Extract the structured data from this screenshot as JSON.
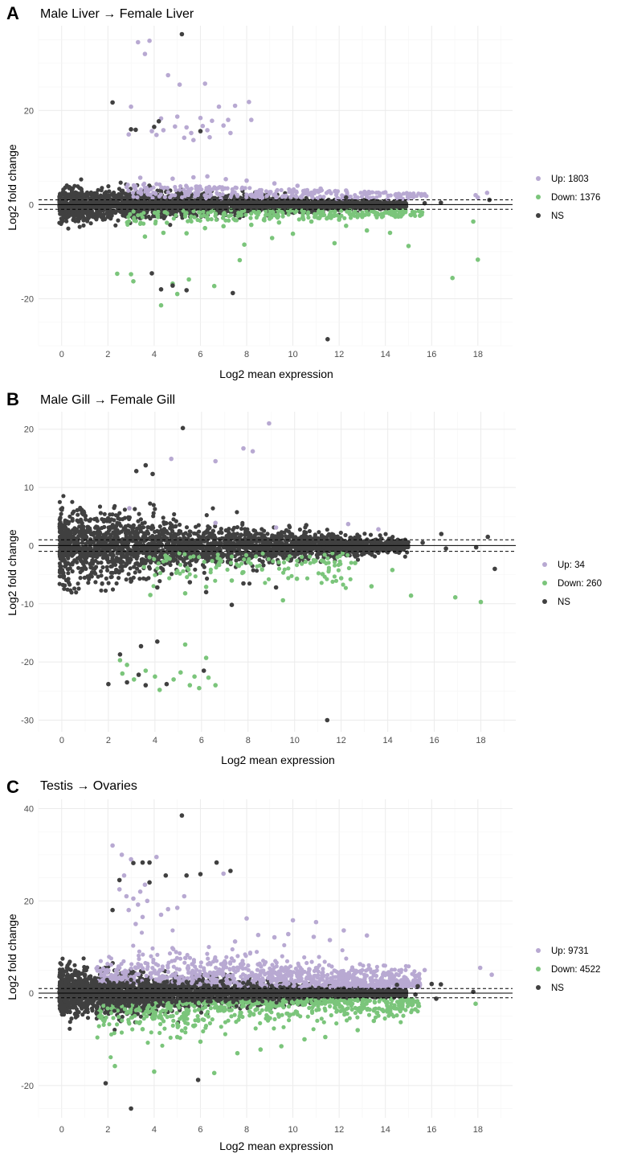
{
  "colors": {
    "up": "#b8a9d2",
    "down": "#7bc57b",
    "ns": "#404040",
    "grid_major": "#ebebeb",
    "grid_minor": "#f5f5f5",
    "axis_text": "#4d4d4d"
  },
  "chart_data": [
    {
      "type": "scatter",
      "panel_letter": "A",
      "title": "Male Liver → Female Liver",
      "xlabel": "Log2 mean expression",
      "ylabel": "Log2 fold change",
      "xlim": [
        -1,
        19.5
      ],
      "ylim": [
        -30,
        38
      ],
      "xticks": [
        0,
        2,
        4,
        6,
        8,
        10,
        12,
        14,
        16,
        18
      ],
      "yticks": [
        -20,
        0,
        20
      ],
      "threshold": 1,
      "grid": true,
      "legend_position": "right",
      "series": [
        {
          "name": "Up: 1803",
          "class": "up",
          "points": [
            [
              3.3,
              34.5
            ],
            [
              3.6,
              32
            ],
            [
              3.8,
              34.8
            ],
            [
              4.6,
              27.5
            ],
            [
              5.1,
              25.5
            ],
            [
              6.2,
              25.7
            ],
            [
              3.0,
              20.8
            ],
            [
              4.3,
              18.3
            ],
            [
              5.0,
              18.7
            ],
            [
              6.0,
              18.4
            ],
            [
              6.8,
              20.8
            ],
            [
              7.5,
              21.0
            ],
            [
              8.1,
              21.8
            ],
            [
              8.2,
              18.0
            ],
            [
              3.9,
              15.6
            ],
            [
              4.4,
              15.8
            ],
            [
              4.9,
              16.6
            ],
            [
              5.3,
              14.2
            ],
            [
              5.6,
              15.2
            ],
            [
              6.1,
              16.7
            ],
            [
              6.4,
              14.3
            ],
            [
              7.0,
              16.8
            ],
            [
              7.3,
              15.2
            ],
            [
              2.9,
              14.9
            ],
            [
              4.1,
              14.8
            ],
            [
              5.7,
              13.7
            ],
            [
              6.5,
              17.8
            ],
            [
              7.2,
              18.0
            ],
            [
              5.4,
              16.4
            ],
            [
              6.3,
              15.8
            ],
            [
              3.4,
              5.7
            ],
            [
              4.8,
              5.5
            ],
            [
              5.7,
              5.8
            ],
            [
              6.3,
              6.0
            ],
            [
              7.1,
              5.4
            ],
            [
              8.0,
              5.1
            ],
            [
              9.2,
              4.5
            ],
            [
              10.2,
              4.0
            ],
            [
              11.2,
              3.4
            ],
            [
              12.3,
              3.0
            ],
            [
              13.1,
              2.7
            ],
            [
              14.0,
              2.6
            ],
            [
              14.6,
              2.2
            ],
            [
              15.1,
              1.7
            ],
            [
              18.4,
              2.5
            ],
            [
              17.9,
              2.0
            ],
            [
              18.0,
              1.5
            ]
          ]
        },
        {
          "name": "Down: 1376",
          "class": "down",
          "points": [
            [
              2.4,
              -14.7
            ],
            [
              3.0,
              -14.8
            ],
            [
              3.1,
              -16.3
            ],
            [
              4.3,
              -21.4
            ],
            [
              4.8,
              -16.8
            ],
            [
              5.0,
              -19.0
            ],
            [
              5.5,
              -15.9
            ],
            [
              6.6,
              -17.3
            ],
            [
              7.9,
              -8.5
            ],
            [
              7.7,
              -11.8
            ],
            [
              9.1,
              -7.1
            ],
            [
              10.0,
              -6.2
            ],
            [
              11.8,
              -8.2
            ],
            [
              12.3,
              -4.5
            ],
            [
              13.2,
              -5.5
            ],
            [
              14.2,
              -6.0
            ],
            [
              15.0,
              -8.8
            ],
            [
              16.9,
              -15.6
            ],
            [
              18.0,
              -11.7
            ],
            [
              17.8,
              -3.6
            ],
            [
              3.6,
              -6.8
            ],
            [
              4.4,
              -6.0
            ],
            [
              5.4,
              -6.1
            ],
            [
              6.2,
              -5.0
            ],
            [
              7.0,
              -4.6
            ],
            [
              8.2,
              -4.3
            ],
            [
              9.4,
              -3.8
            ],
            [
              10.8,
              -3.6
            ],
            [
              12.0,
              -3.2
            ],
            [
              13.0,
              -2.6
            ],
            [
              14.3,
              -2.1
            ],
            [
              15.2,
              -1.8
            ]
          ]
        },
        {
          "name": "NS",
          "class": "ns",
          "points": [
            [
              5.2,
              36.2
            ],
            [
              2.2,
              21.7
            ],
            [
              3.2,
              15.9
            ],
            [
              4.0,
              16.5
            ],
            [
              4.2,
              17.7
            ],
            [
              6.0,
              15.6
            ],
            [
              3.0,
              16.0
            ],
            [
              3.9,
              -14.6
            ],
            [
              4.3,
              -18.0
            ],
            [
              4.8,
              -17.2
            ],
            [
              5.4,
              -18.2
            ],
            [
              7.4,
              -18.8
            ],
            [
              11.5,
              -28.6
            ],
            [
              12.3,
              1.5
            ],
            [
              13.5,
              0.8
            ],
            [
              15.7,
              0.3
            ],
            [
              16.4,
              0.4
            ],
            [
              18.5,
              1.0
            ]
          ]
        }
      ]
    },
    {
      "type": "scatter",
      "panel_letter": "B",
      "title": "Male Gill → Female Gill",
      "xlabel": "Log2 mean expression",
      "ylabel": "Log2 fold change",
      "xlim": [
        -1,
        19.5
      ],
      "ylim": [
        -32,
        23
      ],
      "xticks": [
        0,
        2,
        4,
        6,
        8,
        10,
        12,
        14,
        16,
        18
      ],
      "yticks": [
        -30,
        -20,
        -10,
        0,
        10,
        20
      ],
      "threshold": 1,
      "grid": true,
      "legend_position": "right",
      "series": [
        {
          "name": "Up: 34",
          "class": "up",
          "points": [
            [
              8.9,
              21.0
            ],
            [
              7.8,
              16.7
            ],
            [
              8.2,
              16.2
            ],
            [
              6.6,
              14.5
            ],
            [
              4.7,
              14.9
            ],
            [
              2.9,
              6.4
            ],
            [
              6.6,
              3.9
            ],
            [
              12.3,
              3.7
            ],
            [
              9.2,
              3.1
            ],
            [
              13.6,
              2.8
            ]
          ]
        },
        {
          "name": "Down: 260",
          "class": "down",
          "points": [
            [
              2.5,
              -19.7
            ],
            [
              2.8,
              -20.5
            ],
            [
              2.6,
              -22.0
            ],
            [
              3.6,
              -21.5
            ],
            [
              4.0,
              -22.5
            ],
            [
              4.2,
              -24.8
            ],
            [
              5.3,
              -17.0
            ],
            [
              6.2,
              -19.3
            ],
            [
              5.1,
              -21.8
            ],
            [
              5.7,
              -22.5
            ],
            [
              5.5,
              -24.0
            ],
            [
              6.3,
              -22.7
            ],
            [
              6.6,
              -24.0
            ],
            [
              5.9,
              -24.5
            ],
            [
              3.1,
              -23.0
            ],
            [
              4.8,
              -23.0
            ],
            [
              3.8,
              -8.5
            ],
            [
              5.3,
              -8.2
            ],
            [
              6.2,
              -7.1
            ],
            [
              7.3,
              -6.0
            ],
            [
              8.6,
              -4.1
            ],
            [
              9.5,
              -9.4
            ],
            [
              10.1,
              -5.7
            ],
            [
              11.2,
              -4.9
            ],
            [
              12.0,
              -5.6
            ],
            [
              13.3,
              -7.0
            ],
            [
              14.2,
              -4.2
            ],
            [
              15.0,
              -8.6
            ],
            [
              16.9,
              -8.9
            ],
            [
              18.0,
              -9.7
            ],
            [
              12.6,
              -3.0
            ],
            [
              10.9,
              -2.6
            ],
            [
              8.0,
              -2.8
            ]
          ]
        },
        {
          "name": "NS",
          "class": "ns",
          "points": [
            [
              5.2,
              20.2
            ],
            [
              3.6,
              13.8
            ],
            [
              3.2,
              12.8
            ],
            [
              3.9,
              12.3
            ],
            [
              11.4,
              -30.0
            ],
            [
              2.0,
              -23.8
            ],
            [
              2.5,
              -18.7
            ],
            [
              3.4,
              -17.3
            ],
            [
              4.1,
              -16.5
            ],
            [
              2.8,
              -23.5
            ],
            [
              3.6,
              -24.0
            ],
            [
              4.5,
              -23.8
            ],
            [
              6.1,
              -21.5
            ],
            [
              3.3,
              -22.2
            ],
            [
              7.3,
              -10.2
            ],
            [
              4.1,
              -7.2
            ],
            [
              5.5,
              -6.3
            ],
            [
              6.2,
              -8.0
            ],
            [
              7.8,
              -6.5
            ],
            [
              9.2,
              -7.2
            ],
            [
              2.0,
              0.0
            ],
            [
              3.5,
              1.5
            ],
            [
              5.0,
              2.0
            ],
            [
              6.5,
              2.5
            ],
            [
              8.0,
              1.8
            ],
            [
              10.5,
              3.5
            ],
            [
              13.5,
              1.0
            ],
            [
              15.5,
              0.5
            ],
            [
              16.5,
              -0.5
            ],
            [
              18.3,
              1.5
            ],
            [
              18.6,
              -4.0
            ],
            [
              17.8,
              -0.3
            ],
            [
              16.3,
              2.0
            ]
          ]
        }
      ]
    },
    {
      "type": "scatter",
      "panel_letter": "C",
      "title": "Testis → Ovaries",
      "xlabel": "Log2 mean expression",
      "ylabel": "Log2 fold change",
      "xlim": [
        -1,
        19.5
      ],
      "ylim": [
        -27,
        42
      ],
      "xticks": [
        0,
        2,
        4,
        6,
        8,
        10,
        12,
        14,
        16,
        18
      ],
      "yticks": [
        -20,
        0,
        20,
        40
      ],
      "threshold": 1,
      "grid": true,
      "legend_position": "right",
      "series": [
        {
          "name": "Up: 9731",
          "class": "up",
          "points": [
            [
              2.2,
              32.0
            ],
            [
              2.6,
              30.0
            ],
            [
              3.0,
              29.0
            ],
            [
              4.1,
              29.5
            ],
            [
              7.0,
              25.9
            ],
            [
              2.5,
              22.5
            ],
            [
              2.8,
              21.0
            ],
            [
              3.1,
              20.5
            ],
            [
              3.3,
              19.2
            ],
            [
              2.9,
              18.0
            ],
            [
              3.7,
              20.0
            ],
            [
              3.4,
              22.0
            ],
            [
              3.5,
              16.5
            ],
            [
              3.2,
              15.0
            ],
            [
              4.6,
              18.2
            ],
            [
              5.0,
              18.5
            ],
            [
              5.3,
              21.0
            ],
            [
              4.3,
              17.0
            ],
            [
              3.6,
              23.5
            ],
            [
              2.7,
              25.5
            ],
            [
              8.0,
              16.2
            ],
            [
              10.0,
              15.8
            ],
            [
              11.0,
              15.4
            ],
            [
              12.2,
              13.6
            ],
            [
              13.2,
              12.5
            ],
            [
              10.9,
              12.2
            ],
            [
              11.6,
              11.5
            ],
            [
              9.8,
              12.8
            ],
            [
              9.2,
              12.1
            ],
            [
              8.5,
              12.6
            ],
            [
              7.5,
              11.2
            ],
            [
              15.7,
              5.0
            ],
            [
              18.1,
              5.5
            ],
            [
              18.6,
              4.0
            ]
          ]
        },
        {
          "name": "Down: 4522",
          "class": "down",
          "points": [
            [
              2.3,
              -15.8
            ],
            [
              4.0,
              -17.0
            ],
            [
              6.6,
              -17.3
            ],
            [
              7.6,
              -13.0
            ],
            [
              8.6,
              -12.2
            ],
            [
              10.5,
              -10.0
            ],
            [
              11.4,
              -9.5
            ],
            [
              12.8,
              -8.0
            ],
            [
              9.5,
              -11.5
            ],
            [
              6.0,
              -10.5
            ],
            [
              5.0,
              -9.5
            ],
            [
              3.5,
              -7.8
            ],
            [
              13.5,
              -6.0
            ],
            [
              14.2,
              -4.5
            ],
            [
              15.3,
              -3.5
            ],
            [
              17.9,
              -2.3
            ]
          ]
        },
        {
          "name": "NS",
          "class": "ns",
          "points": [
            [
              5.2,
              38.5
            ],
            [
              3.1,
              28.2
            ],
            [
              3.5,
              28.3
            ],
            [
              3.8,
              28.3
            ],
            [
              2.5,
              24.5
            ],
            [
              3.8,
              24.0
            ],
            [
              4.5,
              25.5
            ],
            [
              5.4,
              25.5
            ],
            [
              6.0,
              25.8
            ],
            [
              6.7,
              28.3
            ],
            [
              7.3,
              26.5
            ],
            [
              2.2,
              18.0
            ],
            [
              1.9,
              -19.5
            ],
            [
              3.0,
              -25.0
            ],
            [
              5.9,
              -18.8
            ],
            [
              14.5,
              1.8
            ],
            [
              15.4,
              1.5
            ],
            [
              16.0,
              2.0
            ],
            [
              16.4,
              1.9
            ],
            [
              17.8,
              0.3
            ],
            [
              16.2,
              -1.2
            ],
            [
              15.3,
              -0.3
            ]
          ]
        }
      ]
    }
  ]
}
